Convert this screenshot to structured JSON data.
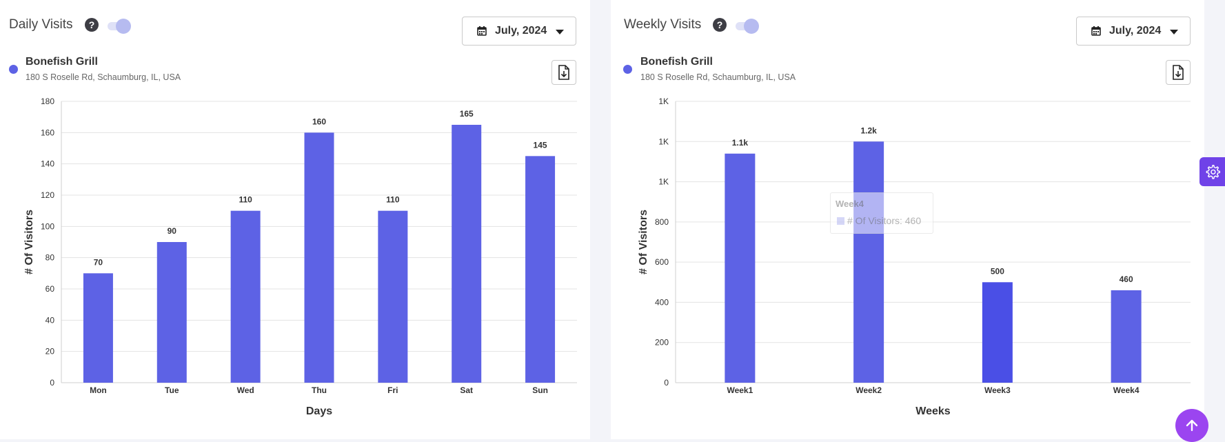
{
  "daily": {
    "title": "Daily Visits",
    "date_select": "July, 2024",
    "venue_name": "Bonefish Grill",
    "venue_address": "180 S Roselle Rd, Schaumburg, IL, USA",
    "series_color": "#5d62e5"
  },
  "weekly": {
    "title": "Weekly Visits",
    "date_select": "July, 2024",
    "venue_name": "Bonefish Grill",
    "venue_address": "180 S Roselle Rd, Schaumburg, IL, USA",
    "series_color": "#5d62e5",
    "tooltip": {
      "title": "Week4",
      "text": "# Of Visitors: 460"
    }
  },
  "icons": {
    "help": "question-circle-icon",
    "calendar": "calendar-icon",
    "download": "download-file-icon",
    "settings": "gear-icon",
    "scroll_top": "chevron-up-icon"
  },
  "chart_data": [
    {
      "type": "bar",
      "title": "Daily Visits",
      "categories": [
        "Mon",
        "Tue",
        "Wed",
        "Thu",
        "Fri",
        "Sat",
        "Sun"
      ],
      "series": [
        {
          "name": "# Of Visitors",
          "values": [
            70,
            90,
            110,
            160,
            110,
            165,
            145
          ]
        }
      ],
      "data_labels": [
        "70",
        "90",
        "110",
        "160",
        "110",
        "165",
        "145"
      ],
      "xlabel": "Days",
      "ylabel": "# Of Visitors",
      "ylim": [
        0,
        180
      ],
      "yticks": [
        0,
        20,
        40,
        60,
        80,
        100,
        120,
        140,
        160,
        180
      ],
      "ytick_labels": [
        "0",
        "20",
        "40",
        "60",
        "80",
        "100",
        "120",
        "140",
        "160",
        "180"
      ],
      "grid": true
    },
    {
      "type": "bar",
      "title": "Weekly Visits",
      "categories": [
        "Week1",
        "Week2",
        "Week3",
        "Week4"
      ],
      "series": [
        {
          "name": "# Of Visitors",
          "values": [
            1140,
            1200,
            500,
            460
          ]
        }
      ],
      "data_labels": [
        "1.1k",
        "1.2k",
        "500",
        "460"
      ],
      "xlabel": "Weeks",
      "ylabel": "# Of Visitors",
      "ylim": [
        0,
        1400
      ],
      "yticks": [
        0,
        200,
        400,
        600,
        800,
        1000,
        1200,
        1400
      ],
      "ytick_labels": [
        "0",
        "200",
        "400",
        "600",
        "800",
        "1K",
        "1K",
        "1K"
      ],
      "grid": true
    }
  ]
}
